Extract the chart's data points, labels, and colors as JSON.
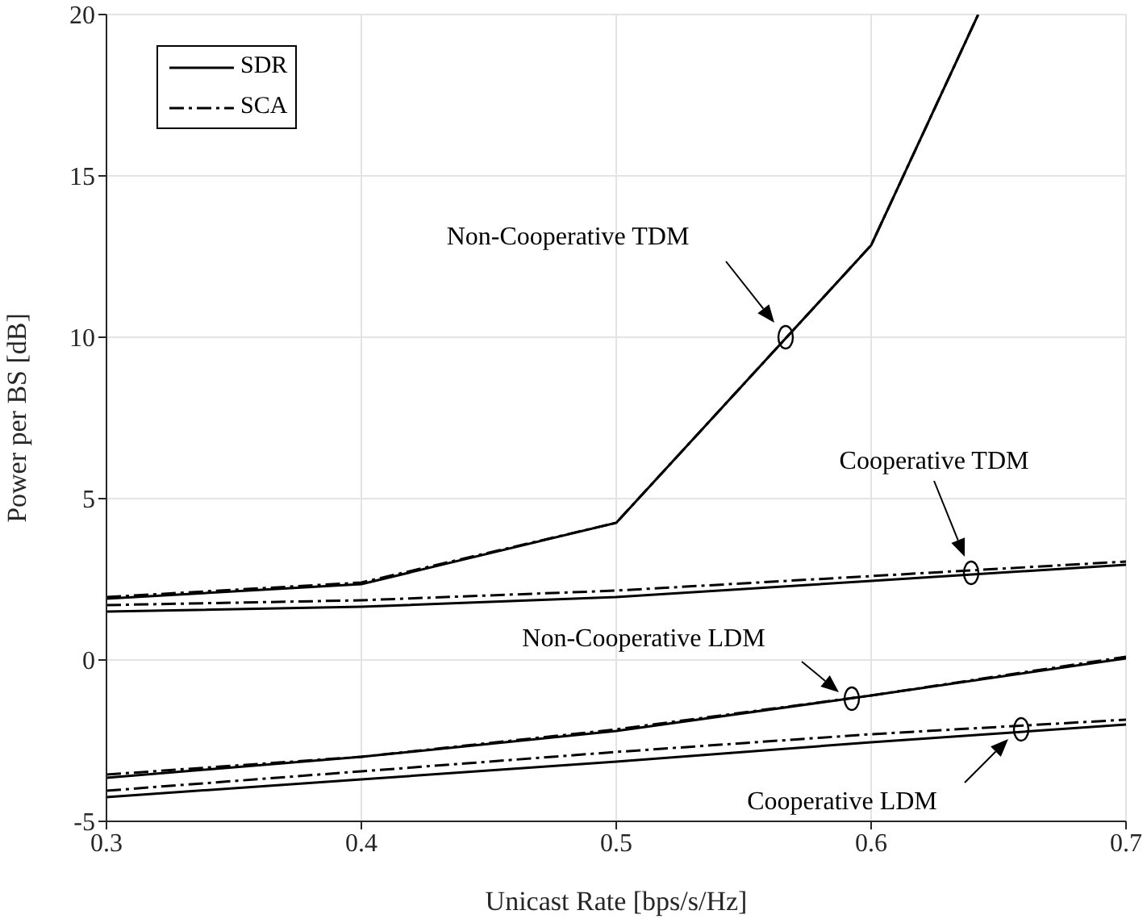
{
  "chart_data": {
    "type": "line",
    "xlabel": "Unicast Rate [bps/s/Hz]",
    "ylabel": "Power per BS [dB]",
    "xlim": [
      0.3,
      0.7
    ],
    "xticks": [
      0.3,
      0.4,
      0.5,
      0.6,
      0.7
    ],
    "ylim": [
      -5,
      20
    ],
    "yticks": [
      -5,
      0,
      5,
      10,
      15,
      20
    ],
    "grid": true,
    "legend": "top left",
    "marker": "none",
    "series": [
      {
        "name": "SDR",
        "color": "#000000",
        "line_style": "solid",
        "x": [
          0.3,
          0.4,
          0.5,
          0.6,
          0.642
        ],
        "values": [
          1.9,
          2.35,
          4.25,
          12.85,
          20
        ]
      },
      {
        "name": "SCA",
        "color": "#000000",
        "line_style": "dashdot",
        "x": [
          0.3,
          0.4,
          0.5,
          0.6,
          0.642
        ],
        "values": [
          1.95,
          2.4,
          4.25,
          12.85,
          20
        ]
      },
      {
        "color": "#000000",
        "line_style": "solid",
        "x": [
          0.3,
          0.4,
          0.5,
          0.6,
          0.7
        ],
        "values": [
          1.5,
          1.65,
          1.95,
          2.45,
          2.95
        ]
      },
      {
        "color": "#000000",
        "line_style": "dashdot",
        "x": [
          0.3,
          0.4,
          0.5,
          0.6,
          0.7
        ],
        "values": [
          1.7,
          1.85,
          2.15,
          2.6,
          3.05
        ]
      },
      {
        "color": "#000000",
        "line_style": "solid",
        "x": [
          0.3,
          0.4,
          0.5,
          0.6,
          0.7
        ],
        "values": [
          -3.65,
          -3.0,
          -2.2,
          -1.1,
          0.05
        ]
      },
      {
        "color": "#000000",
        "line_style": "dashdot",
        "x": [
          0.3,
          0.4,
          0.5,
          0.6,
          0.7
        ],
        "values": [
          -3.55,
          -3.0,
          -2.15,
          -1.1,
          0.1
        ]
      },
      {
        "color": "#000000",
        "line_style": "solid",
        "x": [
          0.3,
          0.4,
          0.5,
          0.6,
          0.7
        ],
        "values": [
          -4.25,
          -3.7,
          -3.15,
          -2.55,
          -2.0
        ]
      },
      {
        "color": "#000000",
        "line_style": "dashdot",
        "x": [
          0.3,
          0.4,
          0.5,
          0.6,
          0.7
        ],
        "values": [
          -4.05,
          -3.45,
          -2.85,
          -2.3,
          -1.85
        ]
      }
    ],
    "annotations": [
      "Non-Cooperative TDM",
      "Cooperative TDM",
      "Non-Cooperative LDM",
      "Cooperative LDM"
    ]
  }
}
